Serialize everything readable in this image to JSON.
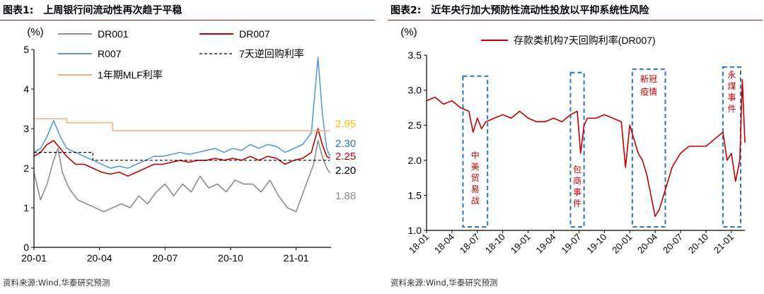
{
  "chart_data": [
    {
      "type": "line",
      "figure_label": "图表1:",
      "title": "上周银行间流动性再次趋于平稳",
      "ylabel": "(%)",
      "ylim": [
        0,
        5
      ],
      "yticks": [
        "0",
        "1",
        "2",
        "3",
        "4",
        "5"
      ],
      "xticks": [
        {
          "label": "20-01",
          "month": 0
        },
        {
          "label": "20-04",
          "month": 3
        },
        {
          "label": "20-07",
          "month": 6
        },
        {
          "label": "20-10",
          "month": 9
        },
        {
          "label": "21-01",
          "month": 12
        }
      ],
      "xlim_months": [
        0,
        13.6
      ],
      "series": [
        {
          "name": "DR001",
          "color": "#8c8c8c",
          "last": 1.88,
          "points": [
            [
              0,
              1.9
            ],
            [
              0.3,
              1.2
            ],
            [
              0.6,
              1.6
            ],
            [
              0.9,
              2.2
            ],
            [
              1.1,
              2.5
            ],
            [
              1.3,
              1.9
            ],
            [
              1.6,
              1.5
            ],
            [
              2.0,
              1.2
            ],
            [
              2.4,
              1.1
            ],
            [
              2.8,
              1.0
            ],
            [
              3.2,
              0.9
            ],
            [
              3.6,
              1.0
            ],
            [
              4.0,
              1.1
            ],
            [
              4.4,
              1.0
            ],
            [
              4.8,
              1.3
            ],
            [
              5.2,
              1.1
            ],
            [
              5.6,
              1.4
            ],
            [
              6.0,
              1.6
            ],
            [
              6.4,
              1.3
            ],
            [
              6.8,
              1.6
            ],
            [
              7.2,
              1.4
            ],
            [
              7.6,
              1.8
            ],
            [
              8.0,
              1.5
            ],
            [
              8.4,
              1.6
            ],
            [
              8.8,
              1.4
            ],
            [
              9.2,
              1.7
            ],
            [
              9.6,
              1.6
            ],
            [
              10.0,
              1.6
            ],
            [
              10.4,
              1.4
            ],
            [
              10.8,
              1.7
            ],
            [
              11.2,
              1.3
            ],
            [
              11.6,
              1.0
            ],
            [
              12.0,
              0.9
            ],
            [
              12.4,
              1.5
            ],
            [
              12.8,
              2.1
            ],
            [
              13.0,
              2.7
            ],
            [
              13.2,
              2.3
            ],
            [
              13.4,
              2.0
            ],
            [
              13.55,
              1.88
            ]
          ]
        },
        {
          "name": "DR007",
          "color": "#c00000",
          "last": 2.25,
          "points": [
            [
              0,
              2.3
            ],
            [
              0.3,
              2.4
            ],
            [
              0.6,
              2.6
            ],
            [
              0.9,
              2.7
            ],
            [
              1.2,
              2.5
            ],
            [
              1.5,
              2.3
            ],
            [
              1.9,
              2.1
            ],
            [
              2.3,
              2.1
            ],
            [
              2.7,
              2.0
            ],
            [
              3.1,
              1.9
            ],
            [
              3.5,
              1.85
            ],
            [
              3.9,
              1.9
            ],
            [
              4.3,
              1.8
            ],
            [
              4.7,
              1.9
            ],
            [
              5.1,
              2.0
            ],
            [
              5.5,
              2.1
            ],
            [
              5.9,
              2.1
            ],
            [
              6.3,
              2.15
            ],
            [
              6.7,
              2.2
            ],
            [
              7.1,
              2.15
            ],
            [
              7.5,
              2.2
            ],
            [
              7.9,
              2.2
            ],
            [
              8.3,
              2.25
            ],
            [
              8.7,
              2.2
            ],
            [
              9.1,
              2.25
            ],
            [
              9.5,
              2.2
            ],
            [
              9.9,
              2.3
            ],
            [
              10.3,
              2.2
            ],
            [
              10.7,
              2.3
            ],
            [
              11.1,
              2.25
            ],
            [
              11.5,
              2.1
            ],
            [
              11.9,
              2.2
            ],
            [
              12.3,
              2.25
            ],
            [
              12.7,
              2.4
            ],
            [
              13.0,
              3.0
            ],
            [
              13.2,
              2.6
            ],
            [
              13.4,
              2.3
            ],
            [
              13.55,
              2.25
            ]
          ]
        },
        {
          "name": "R007",
          "color": "#5b9bd5",
          "last": 2.3,
          "points": [
            [
              0,
              2.4
            ],
            [
              0.3,
              2.5
            ],
            [
              0.6,
              2.8
            ],
            [
              0.9,
              3.2
            ],
            [
              1.2,
              2.8
            ],
            [
              1.5,
              2.5
            ],
            [
              1.9,
              2.4
            ],
            [
              2.3,
              2.3
            ],
            [
              2.7,
              2.2
            ],
            [
              3.1,
              2.1
            ],
            [
              3.5,
              2.0
            ],
            [
              3.9,
              2.05
            ],
            [
              4.3,
              2.0
            ],
            [
              4.7,
              2.1
            ],
            [
              5.1,
              2.2
            ],
            [
              5.5,
              2.3
            ],
            [
              5.9,
              2.3
            ],
            [
              6.3,
              2.35
            ],
            [
              6.7,
              2.4
            ],
            [
              7.1,
              2.35
            ],
            [
              7.5,
              2.4
            ],
            [
              7.9,
              2.45
            ],
            [
              8.3,
              2.5
            ],
            [
              8.7,
              2.4
            ],
            [
              9.1,
              2.5
            ],
            [
              9.5,
              2.45
            ],
            [
              9.9,
              2.6
            ],
            [
              10.3,
              2.5
            ],
            [
              10.7,
              2.6
            ],
            [
              11.1,
              2.55
            ],
            [
              11.5,
              2.4
            ],
            [
              11.9,
              2.5
            ],
            [
              12.3,
              2.6
            ],
            [
              12.7,
              2.9
            ],
            [
              13.0,
              4.8
            ],
            [
              13.2,
              3.4
            ],
            [
              13.4,
              2.5
            ],
            [
              13.55,
              2.3
            ]
          ]
        },
        {
          "name": "7天逆回购利率",
          "color": "#000000",
          "dashed": true,
          "last": 2.2,
          "points": [
            [
              0,
              2.4
            ],
            [
              2.7,
              2.4
            ],
            [
              2.7,
              2.2
            ],
            [
              3.6,
              2.2
            ],
            [
              13.55,
              2.2
            ]
          ]
        },
        {
          "name": "1年期MLF利率",
          "color": "#f4b183",
          "last": 2.95,
          "points": [
            [
              0,
              3.25
            ],
            [
              1.5,
              3.25
            ],
            [
              1.5,
              3.15
            ],
            [
              3.6,
              3.15
            ],
            [
              3.6,
              2.95
            ],
            [
              13.55,
              2.95
            ]
          ]
        }
      ],
      "end_labels": [
        {
          "text": "2.95",
          "color": "#ffc000",
          "value": 2.95
        },
        {
          "text": "2.30",
          "color": "#2e75b6",
          "value": 2.3
        },
        {
          "text": "2.25",
          "color": "#c00000",
          "value": 2.25
        },
        {
          "text": "2.20",
          "color": "#000000",
          "value": 2.2
        },
        {
          "text": "1.88",
          "color": "#8c8c8c",
          "value": 1.88
        }
      ],
      "source": "资料来源:Wind,华泰研究预测"
    },
    {
      "type": "line",
      "figure_label": "图表2:",
      "title": "近年央行加大预防性流动性投放以平抑系统性风险",
      "ylabel": "(%)",
      "ylim": [
        1.0,
        3.5
      ],
      "yticks": [
        "1.0",
        "1.5",
        "2.0",
        "2.5",
        "3.0",
        "3.5"
      ],
      "xticks": [
        {
          "label": "18-01",
          "month": 0
        },
        {
          "label": "18-04",
          "month": 3
        },
        {
          "label": "18-07",
          "month": 6
        },
        {
          "label": "18-10",
          "month": 9
        },
        {
          "label": "19-01",
          "month": 12
        },
        {
          "label": "19-04",
          "month": 15
        },
        {
          "label": "19-07",
          "month": 18
        },
        {
          "label": "19-10",
          "month": 21
        },
        {
          "label": "20-01",
          "month": 24
        },
        {
          "label": "20-04",
          "month": 27
        },
        {
          "label": "20-07",
          "month": 30
        },
        {
          "label": "20-10",
          "month": 33
        },
        {
          "label": "21-01",
          "month": 36
        }
      ],
      "xlim_months": [
        0,
        37.6
      ],
      "series": [
        {
          "name": "存款类机构7天回购利率(DR007)",
          "color": "#c00000",
          "points": [
            [
              0,
              2.85
            ],
            [
              1,
              2.9
            ],
            [
              2,
              2.8
            ],
            [
              3,
              2.85
            ],
            [
              4,
              2.75
            ],
            [
              5,
              2.7
            ],
            [
              5.5,
              2.4
            ],
            [
              6,
              2.6
            ],
            [
              6.5,
              2.45
            ],
            [
              7,
              2.55
            ],
            [
              8,
              2.6
            ],
            [
              9,
              2.65
            ],
            [
              10,
              2.6
            ],
            [
              11,
              2.7
            ],
            [
              12,
              2.6
            ],
            [
              13,
              2.55
            ],
            [
              14,
              2.55
            ],
            [
              15,
              2.6
            ],
            [
              16,
              2.55
            ],
            [
              17,
              2.65
            ],
            [
              17.8,
              2.7
            ],
            [
              18.2,
              2.1
            ],
            [
              18.6,
              2.5
            ],
            [
              19,
              2.6
            ],
            [
              20,
              2.6
            ],
            [
              21,
              2.65
            ],
            [
              22,
              2.6
            ],
            [
              23,
              2.55
            ],
            [
              23.5,
              1.9
            ],
            [
              24,
              2.5
            ],
            [
              24.5,
              2.3
            ],
            [
              25,
              2.1
            ],
            [
              25.5,
              2.0
            ],
            [
              26,
              1.8
            ],
            [
              26.5,
              1.5
            ],
            [
              27,
              1.2
            ],
            [
              27.5,
              1.3
            ],
            [
              28,
              1.5
            ],
            [
              28.5,
              1.7
            ],
            [
              29,
              1.9
            ],
            [
              30,
              2.1
            ],
            [
              31,
              2.2
            ],
            [
              32,
              2.2
            ],
            [
              33,
              2.2
            ],
            [
              34,
              2.3
            ],
            [
              35,
              2.4
            ],
            [
              35.5,
              2.0
            ],
            [
              36,
              2.1
            ],
            [
              36.5,
              1.7
            ],
            [
              37,
              2.0
            ],
            [
              37.3,
              3.15
            ],
            [
              37.6,
              2.25
            ]
          ]
        }
      ],
      "highlight_boxes": [
        {
          "label": "中美贸易战",
          "x0": 4.3,
          "x1": 7.2,
          "y0": 1.05,
          "y1": 3.2
        },
        {
          "label": "包商事件",
          "x0": 17.0,
          "x1": 18.6,
          "y0": 1.05,
          "y1": 3.25
        },
        {
          "label": "新冠疫情",
          "x0": 24.3,
          "x1": 28.2,
          "y0": 1.05,
          "y1": 3.3
        },
        {
          "label": "永煤事件",
          "x0": 35.0,
          "x1": 37.1,
          "y0": 1.05,
          "y1": 3.33
        }
      ],
      "source": "资料来源:Wind,华泰研究预测"
    }
  ]
}
